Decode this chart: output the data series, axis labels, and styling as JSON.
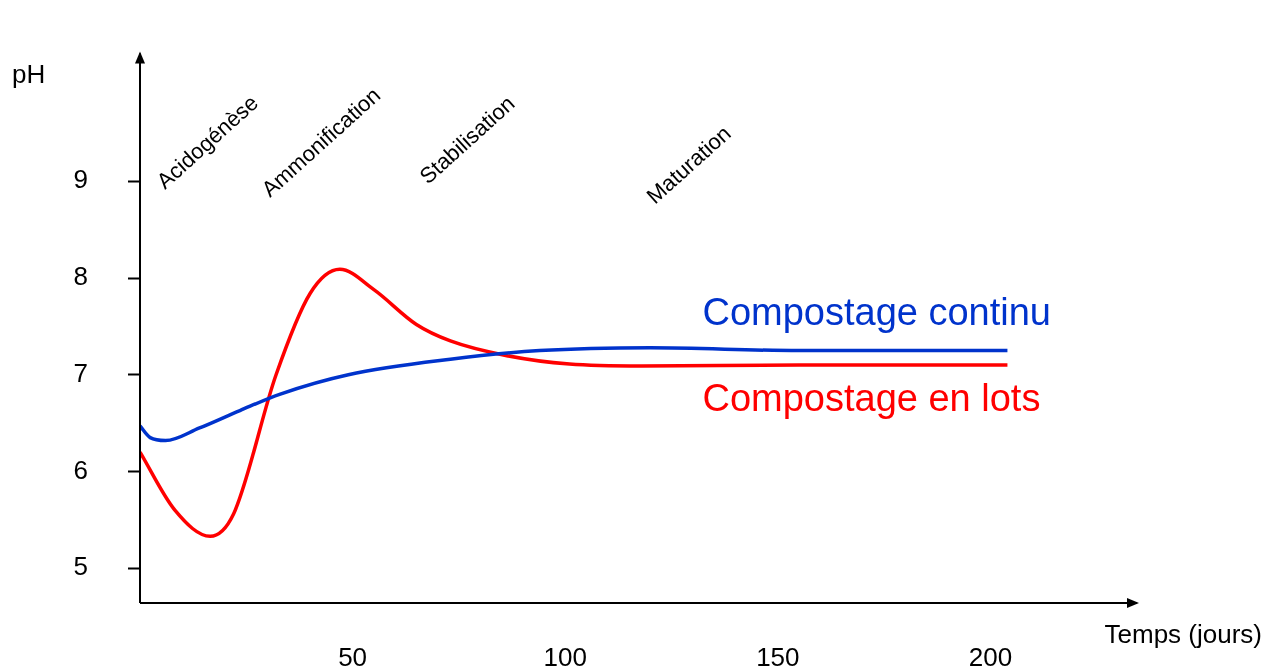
{
  "chart_data": {
    "type": "line",
    "xlabel": "Temps (jours)",
    "ylabel": "pH",
    "xlim": [
      0,
      234
    ],
    "xticks": [
      50,
      100,
      150,
      200
    ],
    "ylim": [
      4.64,
      10.3
    ],
    "yticks": [
      5,
      6,
      7,
      8,
      9
    ],
    "grid": false,
    "legend": false,
    "marker": "none",
    "line_style": "solid",
    "annotations": [
      "Acidogénèse",
      "Ammonification",
      "Stabilisation",
      "Maturation"
    ],
    "series": [
      {
        "name": "Compostage continu",
        "color": "#0033cc",
        "x": [
          0,
          2.4,
          6,
          14,
          23.5,
          33,
          49,
          73,
          94,
          120,
          155,
          204
        ],
        "values": [
          6.47,
          6.35,
          6.32,
          6.45,
          6.63,
          6.8,
          7.0,
          7.16,
          7.25,
          7.28,
          7.25,
          7.25
        ]
      },
      {
        "name": "Compostage en lots",
        "color": "#ff0000",
        "x": [
          0,
          8.2,
          16.5,
          22,
          32,
          40,
          47,
          55,
          65,
          73,
          86,
          101,
          118,
          155,
          204
        ],
        "values": [
          6.2,
          5.6,
          5.33,
          5.56,
          7.0,
          7.84,
          8.09,
          7.88,
          7.52,
          7.35,
          7.2,
          7.11,
          7.09,
          7.1,
          7.1
        ]
      }
    ]
  }
}
